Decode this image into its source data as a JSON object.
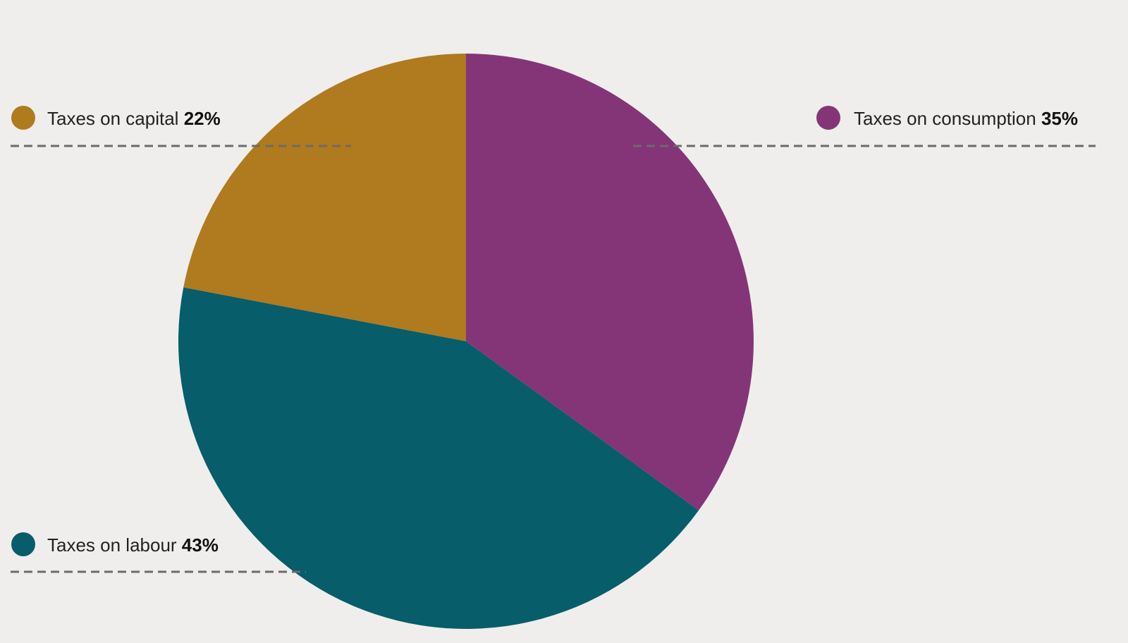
{
  "chart_data": {
    "type": "pie",
    "categories": [
      "Taxes on consumption",
      "Taxes on labour",
      "Taxes on capital"
    ],
    "values": [
      35,
      43,
      22
    ],
    "value_labels": [
      "35%",
      "43%",
      "22%"
    ],
    "colors": [
      "#843577",
      "#075d6a",
      "#b07a1e"
    ]
  }
}
